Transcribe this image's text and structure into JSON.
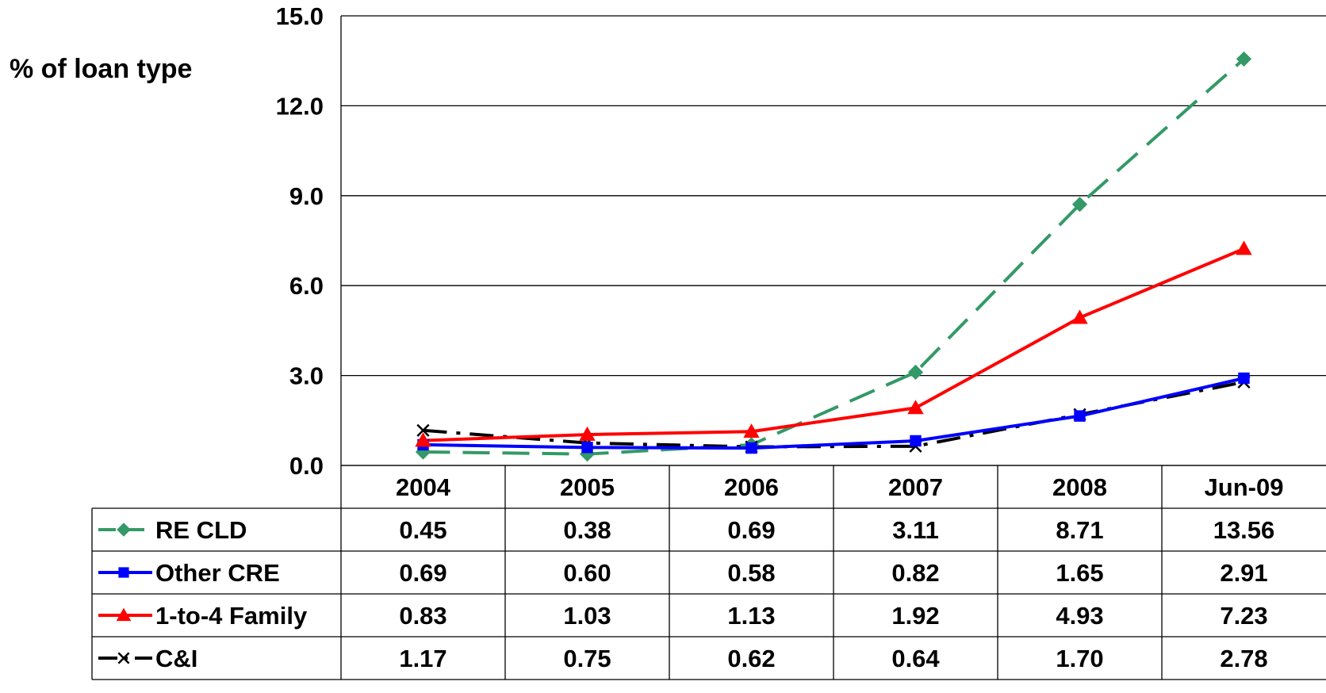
{
  "chart_data": {
    "type": "line",
    "ylabel": "% of loan type",
    "ylim": [
      0,
      15
    ],
    "yticks": [
      "0.0",
      "3.0",
      "6.0",
      "9.0",
      "12.0",
      "15.0"
    ],
    "grid": true,
    "legend": "table-bottom",
    "categories": [
      "2004",
      "2005",
      "2006",
      "2007",
      "2008",
      "Jun-09"
    ],
    "series": [
      {
        "name": "RE CLD",
        "color": "#339966",
        "marker": "diamond",
        "dash": "long-dash",
        "values": [
          0.45,
          0.38,
          0.69,
          3.11,
          8.71,
          13.56
        ],
        "labels": [
          "0.45",
          "0.38",
          "0.69",
          "3.11",
          "8.71",
          "13.56"
        ]
      },
      {
        "name": "Other CRE",
        "color": "#0000ff",
        "marker": "square",
        "dash": "solid",
        "values": [
          0.69,
          0.6,
          0.58,
          0.82,
          1.65,
          2.91
        ],
        "labels": [
          "0.69",
          "0.60",
          "0.58",
          "0.82",
          "1.65",
          "2.91"
        ]
      },
      {
        "name": "1-to-4 Family",
        "color": "#ff0000",
        "marker": "triangle",
        "dash": "solid",
        "values": [
          0.83,
          1.03,
          1.13,
          1.92,
          4.93,
          7.23
        ],
        "labels": [
          "0.83",
          "1.03",
          "1.13",
          "1.92",
          "4.93",
          "7.23"
        ]
      },
      {
        "name": "C&I",
        "color": "#000000",
        "marker": "x",
        "dash": "dash-dot",
        "values": [
          1.17,
          0.75,
          0.62,
          0.64,
          1.7,
          2.78
        ],
        "labels": [
          "1.17",
          "0.75",
          "0.62",
          "0.64",
          "1.70",
          "2.78"
        ]
      }
    ]
  }
}
